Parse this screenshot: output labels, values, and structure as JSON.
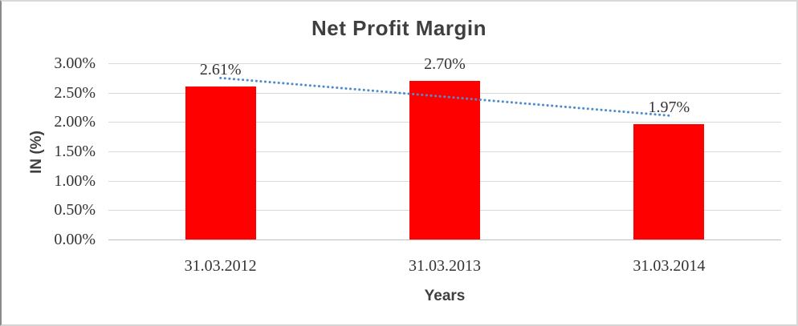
{
  "chart_data": {
    "type": "bar",
    "title": "Net Profit Margin",
    "xlabel": "Years",
    "ylabel": "IN (%)",
    "categories": [
      "31.03.2012",
      "31.03.2013",
      "31.03.2014"
    ],
    "values": [
      2.61,
      2.7,
      1.97
    ],
    "data_labels": [
      "2.61%",
      "2.70%",
      "1.97%"
    ],
    "ytick_labels": [
      "0.00%",
      "0.50%",
      "1.00%",
      "1.50%",
      "2.00%",
      "2.50%",
      "3.00%"
    ],
    "ylim": [
      0,
      3
    ],
    "ytick_step": 0.5,
    "grid": true,
    "legend": "none",
    "series_name": "Net Profit Margin",
    "series_color": "#ff0000",
    "trendline": {
      "type": "linear",
      "style": "dotted",
      "color": "#4e8ccc",
      "start_value": 2.75,
      "end_value": 2.11
    },
    "colors": {
      "title_text": "#3f3f3f",
      "axis_title_text": "#3f3f3f",
      "tick_text": "#333333",
      "data_label_text": "#333333",
      "gridline": "#d9d9d9",
      "axis_line": "#c2c2c2"
    }
  }
}
